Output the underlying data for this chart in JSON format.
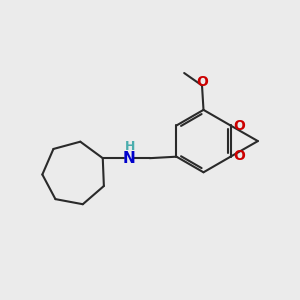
{
  "background_color": "#ebebeb",
  "bond_color": "#2a2a2a",
  "bond_width": 1.5,
  "O_color": "#cc0000",
  "N_color": "#0000cc",
  "H_color": "#4aadad",
  "figsize": [
    3.0,
    3.0
  ],
  "dpi": 100,
  "xlim": [
    0,
    10
  ],
  "ylim": [
    0,
    10
  ]
}
